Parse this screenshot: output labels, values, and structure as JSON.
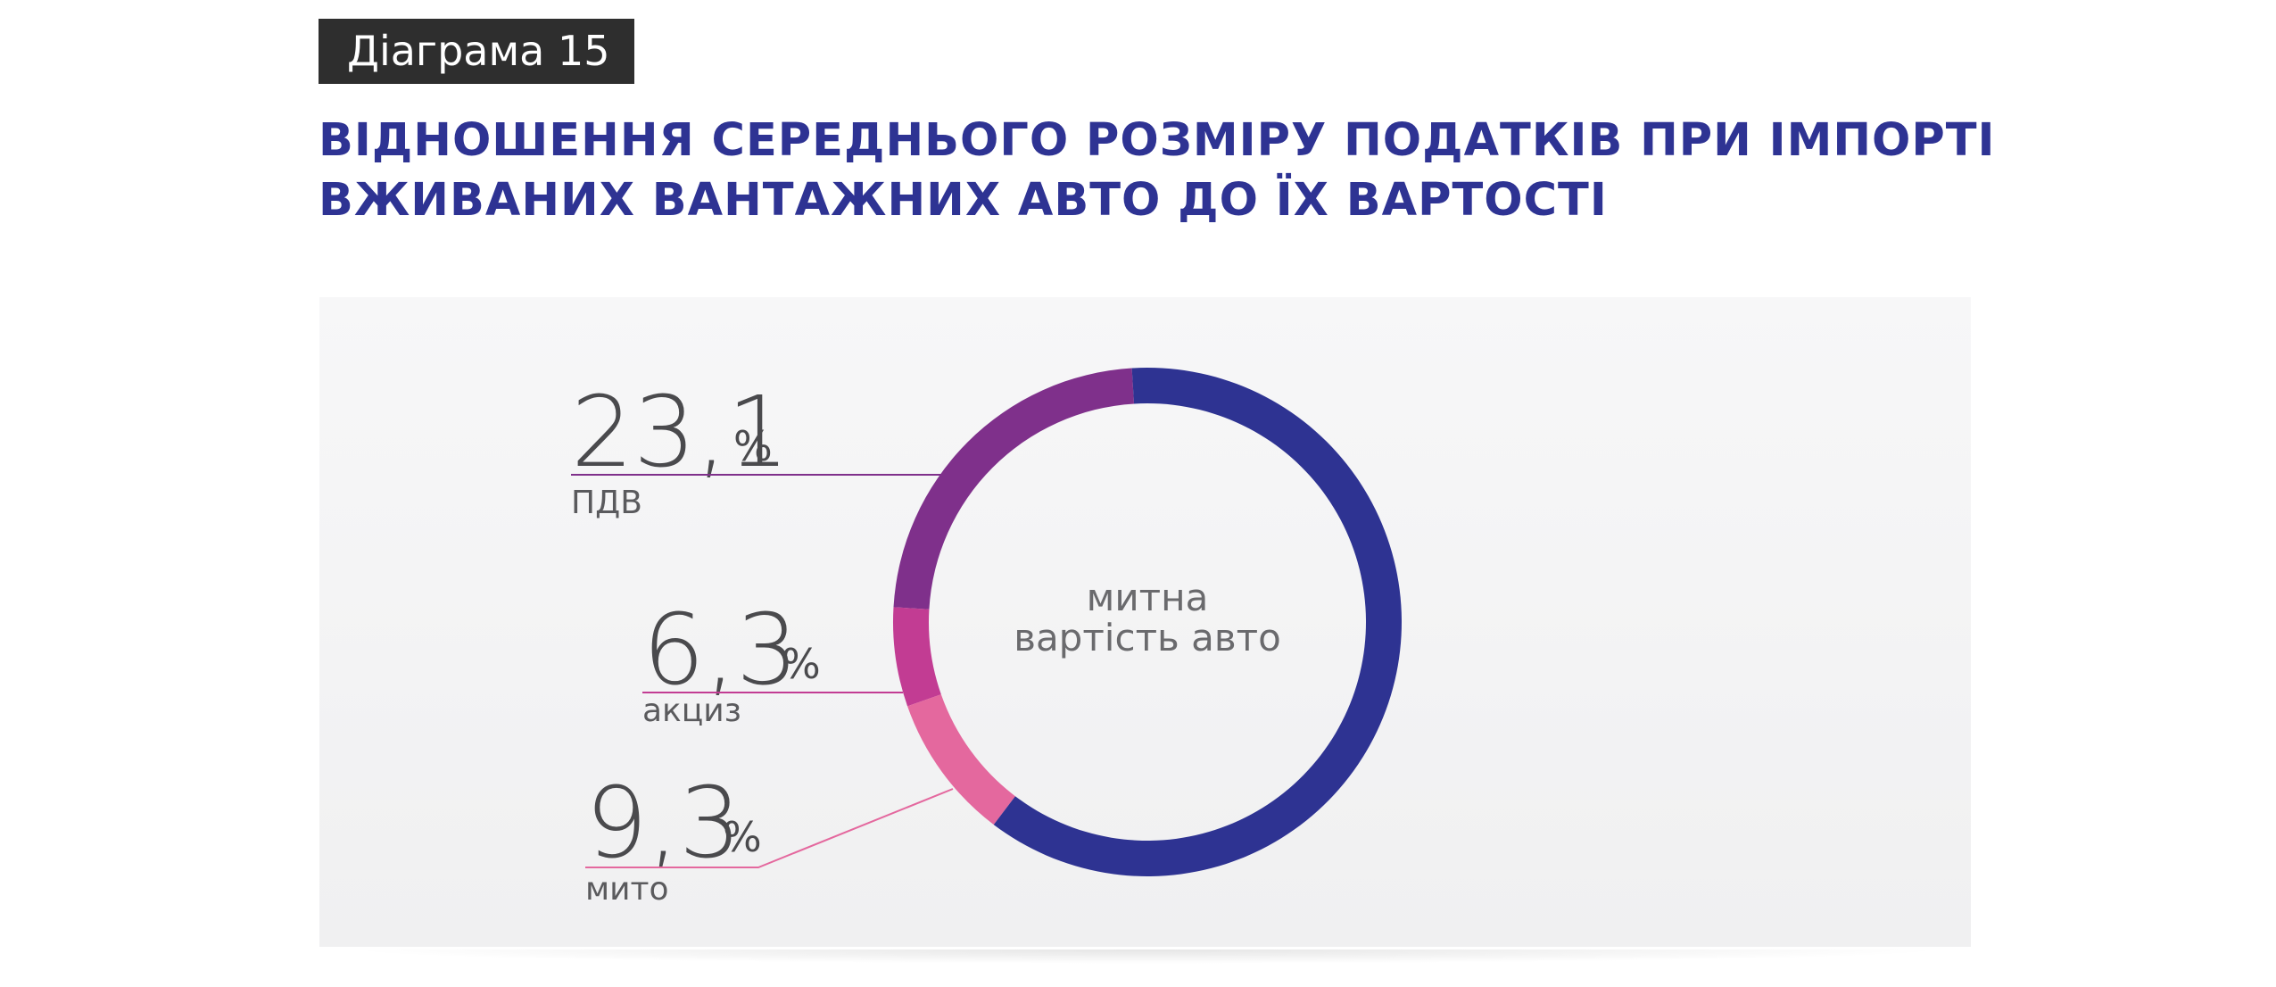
{
  "header": {
    "tag": "Діаграма 15",
    "title_line1": "ВІДНОШЕННЯ СЕРЕДНЬОГО РОЗМІРУ ПОДАТКІВ ПРИ ІМПОРТІ",
    "title_line2": "ВЖИВАНИХ ВАНТАЖНИХ АВТО ДО ЇХ ВАРТОСТІ"
  },
  "chart_data": {
    "type": "pie",
    "variant": "donut",
    "title": "ВІДНОШЕННЯ СЕРЕДНЬОГО РОЗМІРУ ПОДАТКІВ ПРИ ІМПОРТІ ВЖИВАНИХ ВАНТАЖНИХ АВТО ДО ЇХ ВАРТОСТІ",
    "center_label": [
      "митна",
      "вартість авто"
    ],
    "unit": "%",
    "slices": [
      {
        "name": "ПДВ",
        "value": 23.1,
        "display": "23,1",
        "color": "#7f308b"
      },
      {
        "name": "акциз",
        "value": 6.3,
        "display": "6,3",
        "color": "#c23c93"
      },
      {
        "name": "мито",
        "value": 9.3,
        "display": "9,3",
        "color": "#e4689e"
      }
    ],
    "remainder_color": "#2e3392",
    "label_line_colors": [
      "#7f308b",
      "#c23c93",
      "#e4689e"
    ]
  }
}
